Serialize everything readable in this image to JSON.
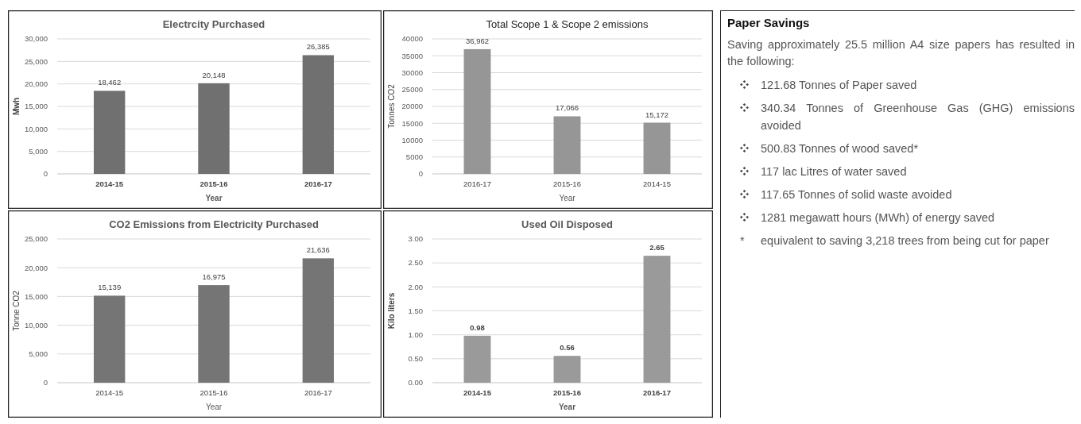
{
  "chart_data": [
    {
      "type": "bar",
      "title": "Electrcity Purchased",
      "xlabel": "Year",
      "ylabel": "Mwh",
      "categories": [
        "2014-15",
        "2015-16",
        "2016-17"
      ],
      "values": [
        18462,
        20148,
        26385
      ],
      "value_labels": [
        "18,462",
        "20,148",
        "26,385"
      ],
      "color": "#707070",
      "ylim": [
        0,
        30000
      ],
      "yticks": [
        0,
        {
          "value": 5000,
          "label": "5,000"
        },
        {
          "value": 10000,
          "label": "10,000"
        },
        {
          "value": 15000,
          "label": "15,000"
        },
        {
          "value": 20000,
          "label": "20,000"
        },
        {
          "value": 25000,
          "label": "25,000"
        },
        {
          "value": 30000,
          "label": "30,000"
        }
      ],
      "grid": "y"
    },
    {
      "type": "bar",
      "title": "Total Scope 1 & Scope 2 emissions",
      "xlabel": "Year",
      "ylabel": "Tonnes CO2",
      "categories": [
        "2016-17",
        "2015-16",
        "2014-15"
      ],
      "values": [
        36962,
        17066,
        15172
      ],
      "value_labels": [
        "36,962",
        "17,066",
        "15,172"
      ],
      "color": "#969696",
      "ylim": [
        0,
        40000
      ],
      "yticks": [
        0,
        5000,
        10000,
        15000,
        20000,
        25000,
        30000,
        35000,
        40000
      ],
      "grid": "y"
    },
    {
      "type": "bar",
      "title": "CO2 Emissions from Electricity Purchased",
      "xlabel": "Year",
      "ylabel": "Tonne CO2",
      "categories": [
        "2014-15",
        "2015-16",
        "2016-17"
      ],
      "values": [
        15139,
        16975,
        21636
      ],
      "value_labels": [
        "15,139",
        "16,975",
        "21,636"
      ],
      "color": "#757575",
      "ylim": [
        0,
        25000
      ],
      "yticks": [
        0,
        {
          "value": 5000,
          "label": "5,000"
        },
        {
          "value": 10000,
          "label": "10,000"
        },
        {
          "value": 15000,
          "label": "15,000"
        },
        {
          "value": 20000,
          "label": "20,000"
        },
        {
          "value": 25000,
          "label": "25,000"
        }
      ],
      "grid": "y"
    },
    {
      "type": "bar",
      "title": "Used Oil Disposed",
      "xlabel": "Year",
      "ylabel": "Kilo liters",
      "categories": [
        "2014-15",
        "2015-16",
        "2016-17"
      ],
      "values": [
        0.98,
        0.56,
        2.65
      ],
      "data_labels": true,
      "color": "#9a9a9a",
      "ylim": [
        0,
        3
      ],
      "yticks": [
        {
          "value": 0,
          "label": "0.00"
        },
        {
          "value": 0.5,
          "label": "0.50"
        },
        {
          "value": 1,
          "label": "1.00"
        },
        {
          "value": 1.5,
          "label": "1.50"
        },
        {
          "value": 2,
          "label": "2.00"
        },
        {
          "value": 2.5,
          "label": "2.50"
        },
        {
          "value": 3,
          "label": "3.00"
        }
      ],
      "grid": "y"
    },
    {
      "type": "other",
      "title": "Paper Savings",
      "annotations": [
        "Saving approximately 25.5 million A4 size papers has resulted in the following:",
        "121.68 Tonnes of Paper saved",
        "340.34 Tonnes of Greenhouse Gas (GHG) emissions avoided",
        "500.83 Tonnes of wood saved*",
        "117 lac Litres of water saved",
        "117.65 Tonnes of solid waste avoided",
        "1281 megawatt hours (MWh) of energy saved",
        "* equivalent to saving 3,218 trees from being cut for paper"
      ]
    }
  ]
}
